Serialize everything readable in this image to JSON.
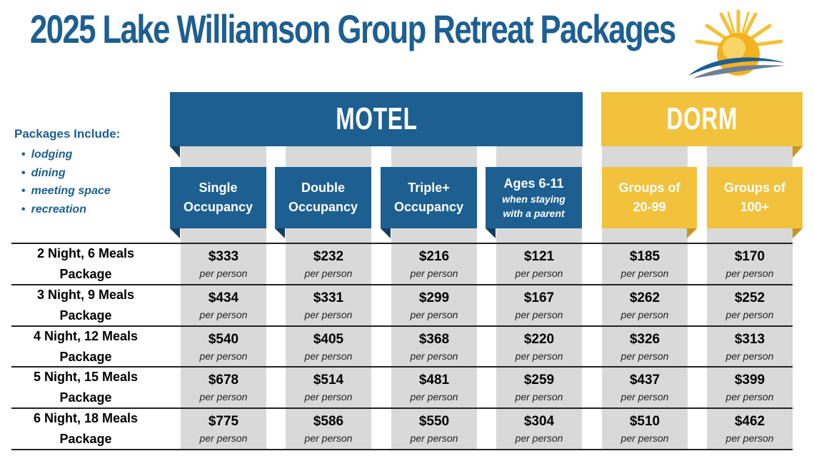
{
  "title": "2025 Lake Williamson Group Retreat Packages",
  "logo": {
    "icon": "sun-over-lake-icon",
    "colors": {
      "sun": "#f5c033",
      "water": "#1d5f91"
    }
  },
  "includes": {
    "heading": "Packages Include:",
    "items": [
      "lodging",
      "dining",
      "meeting space",
      "recreation"
    ]
  },
  "groups": {
    "motel": "MOTEL",
    "dorm": "DORM"
  },
  "columns": [
    {
      "line1": "Single",
      "line2": "Occupancy"
    },
    {
      "line1": "Double",
      "line2": "Occupancy"
    },
    {
      "line1": "Triple+",
      "line2": "Occupancy"
    },
    {
      "line1": "Ages 6-11",
      "note1": "when staying",
      "note2": "with a parent"
    },
    {
      "line1": "Groups of",
      "line2": "20-99"
    },
    {
      "line1": "Groups of",
      "line2": "100+"
    }
  ],
  "unit": "per person",
  "rows": [
    {
      "line1": "2 Night, 6 Meals",
      "line2": "Package",
      "prices": [
        "$333",
        "$232",
        "$216",
        "$121",
        "$185",
        "$170"
      ]
    },
    {
      "line1": "3 Night, 9 Meals",
      "line2": "Package",
      "prices": [
        "$434",
        "$331",
        "$299",
        "$167",
        "$262",
        "$252"
      ]
    },
    {
      "line1": "4 Night, 12 Meals",
      "line2": "Package",
      "prices": [
        "$540",
        "$405",
        "$368",
        "$220",
        "$326",
        "$313"
      ]
    },
    {
      "line1": "5 Night, 15 Meals",
      "line2": "Package",
      "prices": [
        "$678",
        "$514",
        "$481",
        "$259",
        "$437",
        "$399"
      ]
    },
    {
      "line1": "6 Night, 18 Meals",
      "line2": "Package",
      "prices": [
        "$775",
        "$586",
        "$550",
        "$304",
        "$510",
        "$462"
      ]
    }
  ],
  "colors": {
    "motel_blue": "#1d5f91",
    "dorm_gold": "#f2c23d",
    "cell_gray": "#d9d9d9"
  }
}
